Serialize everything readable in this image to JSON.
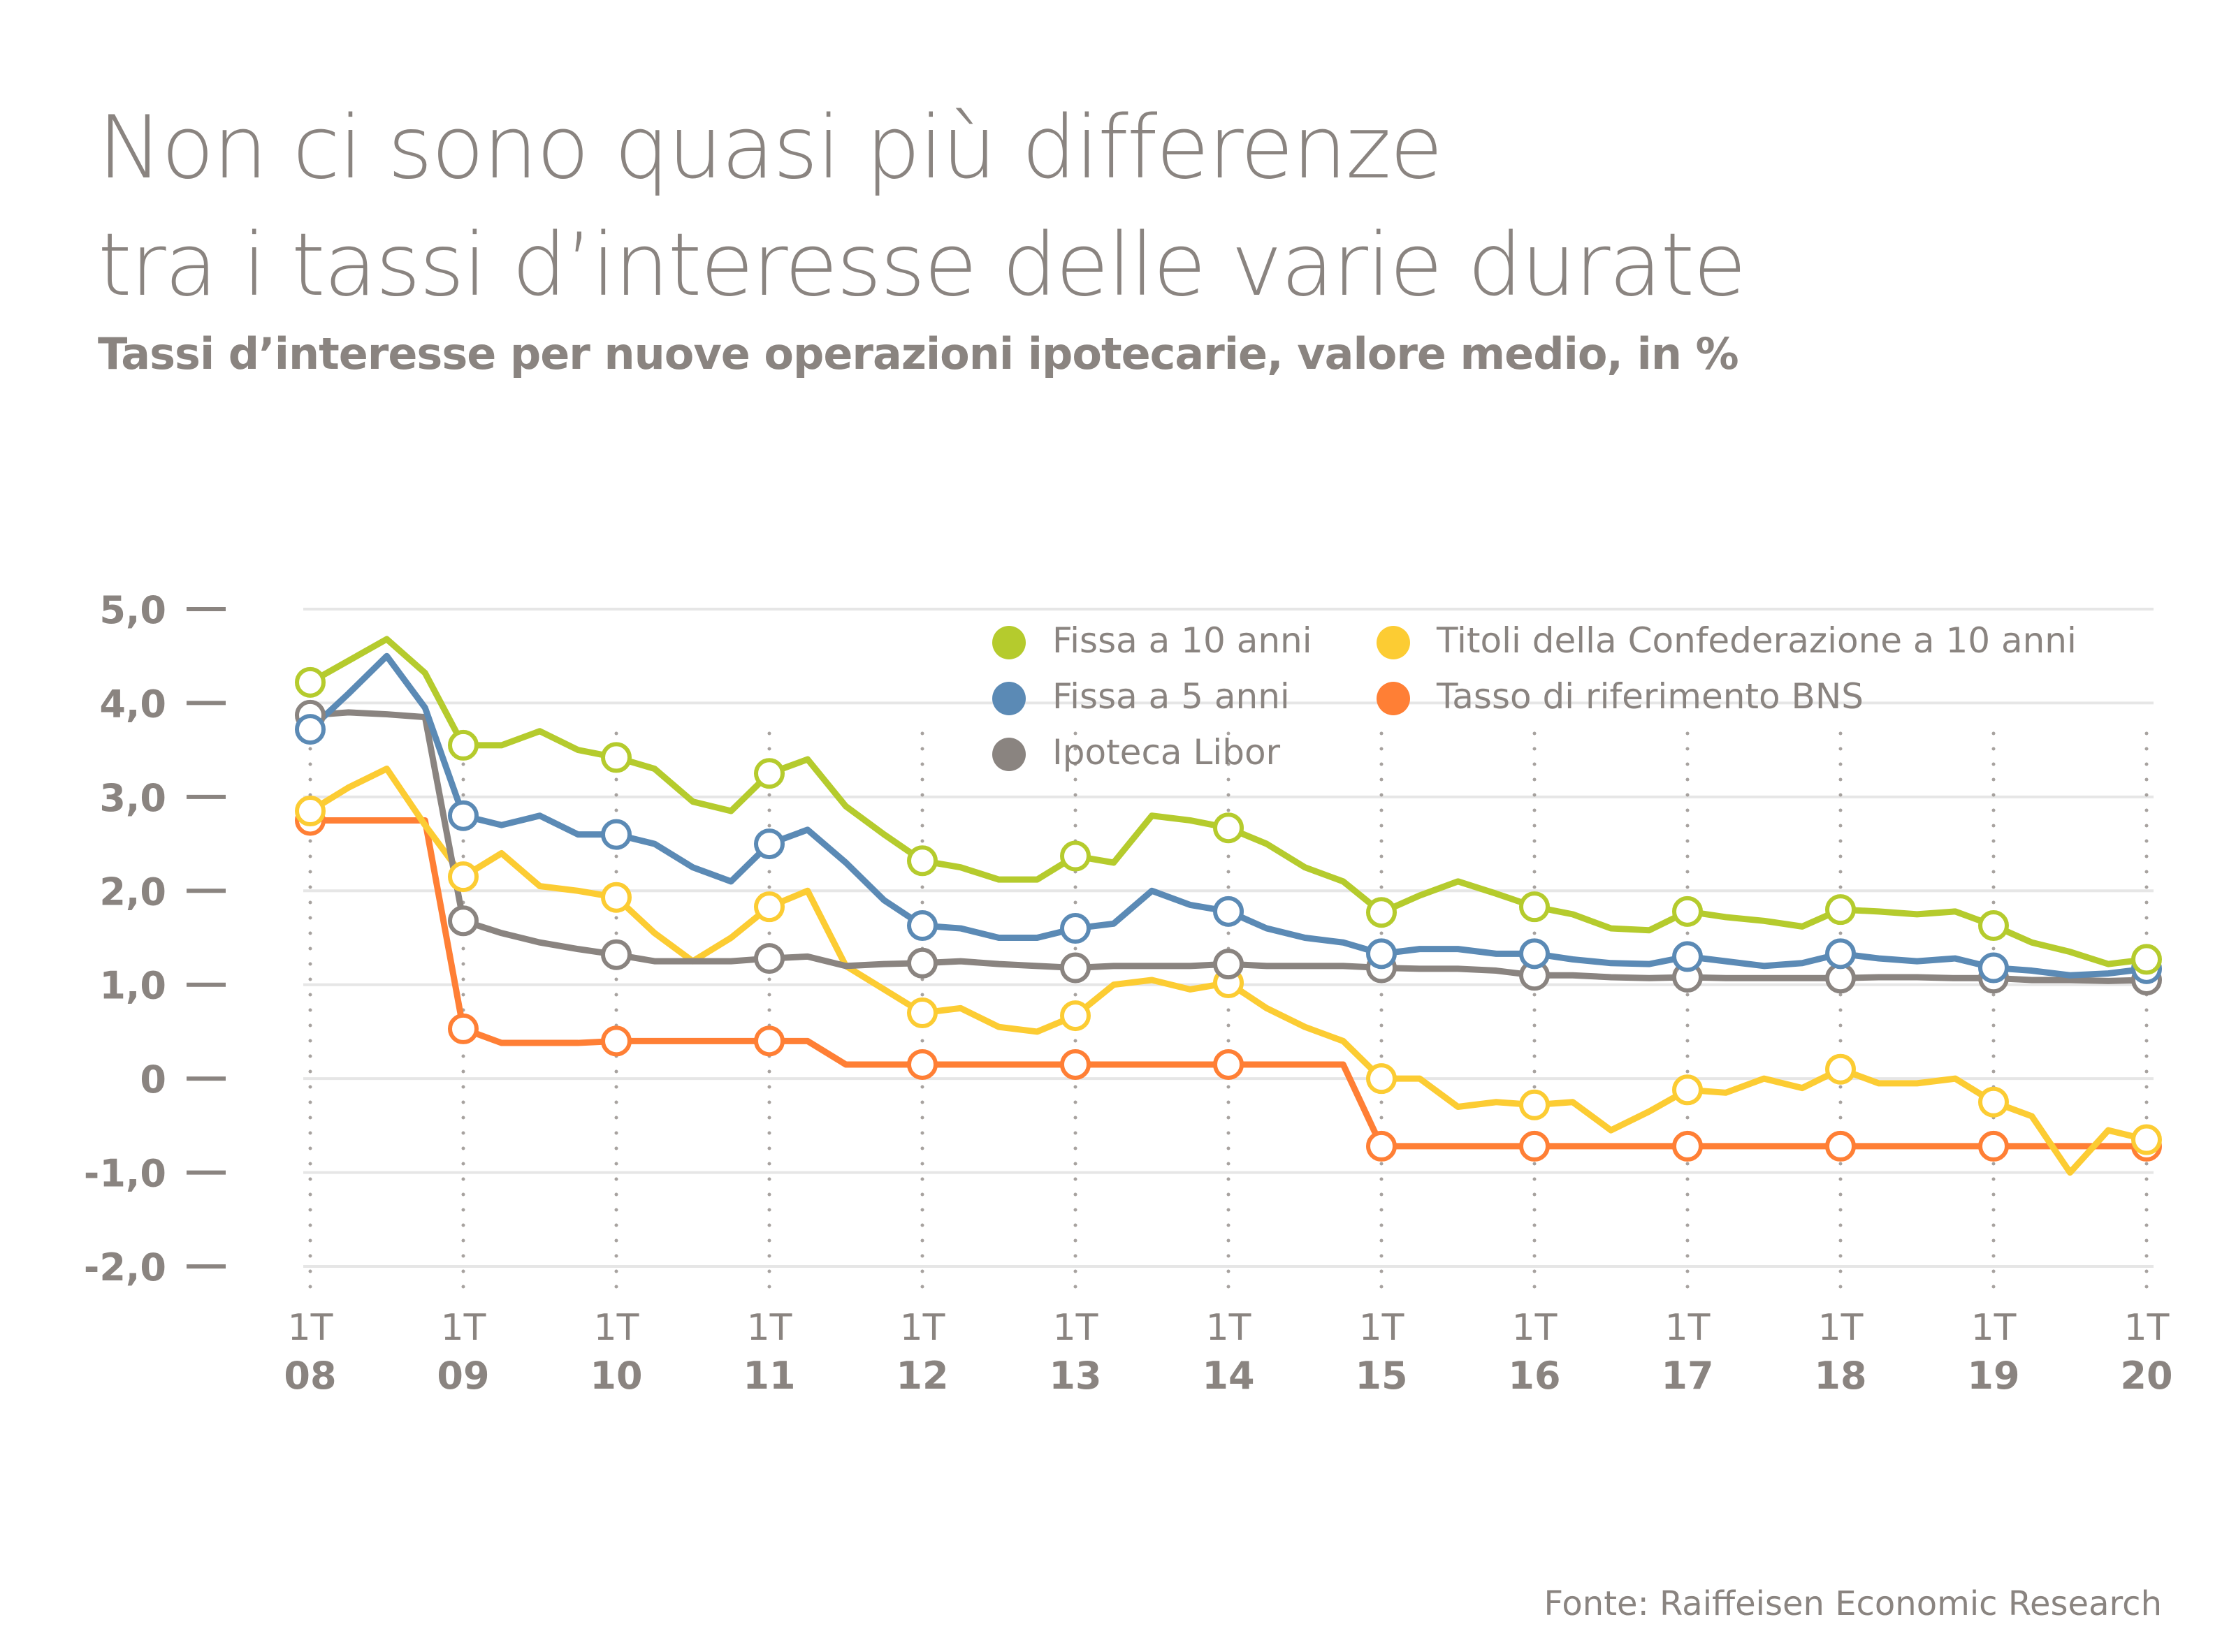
{
  "title_lines": [
    "Non ci sono quasi più differenze",
    "tra i tassi d’interesse delle varie durate"
  ],
  "subtitle": "Tassi d’interesse per nuove operazioni ipotecarie, valore medio, in %",
  "source": "Fonte: Raiffeisen Economic Research",
  "chart_data": {
    "type": "line",
    "title": "Non ci sono quasi più differenze tra i tassi d’interesse delle varie durate",
    "subtitle": "Tassi d’interesse per nuove operazioni ipotecarie, valore medio, in %",
    "xlabel": "",
    "ylabel": "%",
    "ylim": [
      -2.0,
      5.0
    ],
    "yticks": [
      5.0,
      4.0,
      3.0,
      2.0,
      1.0,
      0,
      -1.0,
      -2.0
    ],
    "ytick_labels": [
      "5,0",
      "4,0",
      "3,0",
      "2,0",
      "1,0",
      "0",
      "-1,0",
      "-2,0"
    ],
    "x_categories": [
      {
        "quarter": "1T",
        "year": "08"
      },
      {
        "quarter": "1T",
        "year": "09"
      },
      {
        "quarter": "1T",
        "year": "10"
      },
      {
        "quarter": "1T",
        "year": "11"
      },
      {
        "quarter": "1T",
        "year": "12"
      },
      {
        "quarter": "1T",
        "year": "13"
      },
      {
        "quarter": "1T",
        "year": "14"
      },
      {
        "quarter": "1T",
        "year": "15"
      },
      {
        "quarter": "1T",
        "year": "16"
      },
      {
        "quarter": "1T",
        "year": "17"
      },
      {
        "quarter": "1T",
        "year": "18"
      },
      {
        "quarter": "1T",
        "year": "19"
      },
      {
        "quarter": "1T",
        "year": "20"
      }
    ],
    "x_note": "values sampled quarterly from 1T08 to 1T20 (49 points); circled markers at each 1T",
    "grid": true,
    "legend_position": "top-right",
    "series": [
      {
        "name": "Fissa a 10 anni",
        "color": "#b5cb2d",
        "values": [
          4.22,
          4.45,
          4.68,
          4.32,
          3.55,
          3.55,
          3.7,
          3.5,
          3.42,
          3.3,
          2.95,
          2.85,
          3.25,
          3.4,
          2.9,
          2.6,
          2.32,
          2.25,
          2.12,
          2.12,
          2.37,
          2.3,
          2.8,
          2.75,
          2.67,
          2.5,
          2.25,
          2.1,
          1.77,
          1.95,
          2.1,
          1.97,
          1.83,
          1.75,
          1.6,
          1.58,
          1.78,
          1.72,
          1.68,
          1.62,
          1.8,
          1.78,
          1.75,
          1.78,
          1.63,
          1.45,
          1.35,
          1.22,
          1.27
        ]
      },
      {
        "name": "Fissa a 5 anni",
        "color": "#5b8ab5",
        "values": [
          3.72,
          4.1,
          4.5,
          3.95,
          2.8,
          2.7,
          2.8,
          2.6,
          2.6,
          2.5,
          2.25,
          2.1,
          2.5,
          2.65,
          2.3,
          1.9,
          1.63,
          1.6,
          1.5,
          1.5,
          1.6,
          1.65,
          2.0,
          1.85,
          1.78,
          1.6,
          1.5,
          1.45,
          1.33,
          1.38,
          1.38,
          1.33,
          1.33,
          1.27,
          1.23,
          1.22,
          1.3,
          1.25,
          1.2,
          1.23,
          1.33,
          1.28,
          1.25,
          1.28,
          1.18,
          1.15,
          1.1,
          1.12,
          1.17
        ]
      },
      {
        "name": "Ipoteca Libor",
        "color": "#8a8480",
        "values": [
          3.87,
          3.9,
          3.88,
          3.85,
          1.68,
          1.55,
          1.45,
          1.38,
          1.32,
          1.25,
          1.25,
          1.25,
          1.28,
          1.3,
          1.2,
          1.22,
          1.23,
          1.25,
          1.22,
          1.2,
          1.18,
          1.2,
          1.2,
          1.2,
          1.22,
          1.2,
          1.2,
          1.2,
          1.18,
          1.17,
          1.17,
          1.15,
          1.1,
          1.1,
          1.08,
          1.07,
          1.08,
          1.07,
          1.07,
          1.07,
          1.07,
          1.08,
          1.08,
          1.07,
          1.07,
          1.05,
          1.05,
          1.04,
          1.05
        ]
      },
      {
        "name": "Titoli della Confederazione a 10 anni",
        "color": "#fccc33",
        "values": [
          2.85,
          3.1,
          3.3,
          2.7,
          2.15,
          2.4,
          2.05,
          2.0,
          1.93,
          1.55,
          1.25,
          1.5,
          1.83,
          2.0,
          1.2,
          0.95,
          0.7,
          0.75,
          0.55,
          0.5,
          0.67,
          1.0,
          1.05,
          0.95,
          1.02,
          0.75,
          0.55,
          0.4,
          0.0,
          0.0,
          -0.3,
          -0.25,
          -0.28,
          -0.25,
          -0.55,
          -0.35,
          -0.12,
          -0.15,
          0.0,
          -0.1,
          0.1,
          -0.05,
          -0.05,
          0.0,
          -0.25,
          -0.4,
          -1.0,
          -0.55,
          -0.65
        ]
      },
      {
        "name": "Tasso di riferimento BNS",
        "color": "#ff7f35",
        "values": [
          2.75,
          2.75,
          2.75,
          2.75,
          0.53,
          0.38,
          0.38,
          0.38,
          0.4,
          0.4,
          0.4,
          0.4,
          0.4,
          0.4,
          0.15,
          0.15,
          0.15,
          0.15,
          0.15,
          0.15,
          0.15,
          0.15,
          0.15,
          0.15,
          0.15,
          0.15,
          0.15,
          0.15,
          -0.72,
          -0.72,
          -0.72,
          -0.72,
          -0.72,
          -0.72,
          -0.72,
          -0.72,
          -0.72,
          -0.72,
          -0.72,
          -0.72,
          -0.72,
          -0.72,
          -0.72,
          -0.72,
          -0.72,
          -0.72,
          -0.72,
          -0.72,
          -0.72
        ]
      }
    ]
  }
}
